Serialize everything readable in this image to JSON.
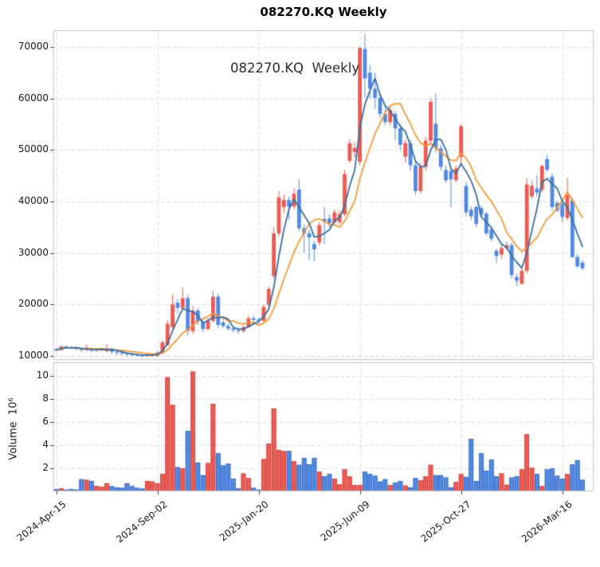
{
  "title": "082270.KQ  Weekly",
  "annotation": "082270.KQ  Weekly",
  "colors": {
    "up": "#ee5a52",
    "down": "#5289e4",
    "up_edge": "#c0403a",
    "down_edge": "#2f62b0",
    "ma_fast": "#3670a0",
    "ma_slow": "#f79a38",
    "grid": "#d8d8d8",
    "spine": "#c4c4c4",
    "tick": "#262626",
    "text": "#1a1a1a"
  },
  "price_axis": {
    "ticks": [
      10000,
      20000,
      30000,
      40000,
      50000,
      60000,
      70000
    ],
    "range": [
      9200,
      73250
    ]
  },
  "volume_axis": {
    "label": "Volume  10⁶",
    "ticks": [
      2,
      4,
      6,
      8,
      10
    ],
    "range": [
      0,
      11.2
    ]
  },
  "x_axis": {
    "ticks": [
      {
        "week": 0,
        "label": "2024-Apr-15"
      },
      {
        "week": 20,
        "label": "2024-Sep-02"
      },
      {
        "week": 40,
        "label": "2025-Jan-20"
      },
      {
        "week": 60,
        "label": "2025-Jun-09"
      },
      {
        "week": 80,
        "label": "2025-Oct-27"
      },
      {
        "week": 100,
        "label": "2026-Mar-16"
      }
    ]
  },
  "chart_data": {
    "type": "candlestick",
    "symbol": "082270.KQ",
    "interval": "Weekly",
    "title": "082270.KQ  Weekly",
    "legend_position": "none",
    "grid": true,
    "ma_fast_window": 4,
    "ma_slow_window": 9,
    "n_weeks": 105,
    "open": [
      11300,
      11100,
      11800,
      11700,
      11600,
      11300,
      11100,
      11500,
      11000,
      11100,
      10900,
      11400,
      10800,
      10600,
      10400,
      10300,
      10200,
      10100,
      10000,
      10000,
      10000,
      10600,
      12100,
      15600,
      20300,
      19300,
      21200,
      14800,
      18800,
      16600,
      15200,
      16800,
      21500,
      16500,
      15800,
      15300,
      15000,
      14800,
      15600,
      17300,
      17000,
      16800,
      19900,
      25500,
      33800,
      38900,
      40300,
      39000,
      42300,
      34800,
      33800,
      31700,
      32000,
      36600,
      36700,
      35900,
      36000,
      37500,
      47900,
      49600,
      47700,
      69600,
      65000,
      61900,
      60100,
      57000,
      55400,
      57000,
      54200,
      48700,
      51300,
      47000,
      42000,
      46700,
      51800,
      55100,
      50300,
      46100,
      45900,
      44100,
      48700,
      43000,
      38400,
      38900,
      38700,
      37600,
      34550,
      30420,
      29650,
      30900,
      31500,
      25300,
      24000,
      26500,
      40975,
      42500,
      42270,
      48200,
      44800,
      39700,
      39500,
      36800,
      40200,
      29200,
      28100
    ],
    "high": [
      11500,
      12000,
      12100,
      11900,
      11700,
      11500,
      12200,
      11600,
      11500,
      11600,
      12200,
      11500,
      11000,
      10800,
      10600,
      10500,
      10400,
      10300,
      10500,
      10500,
      10900,
      13000,
      17000,
      21900,
      21000,
      23300,
      21800,
      19600,
      19200,
      17000,
      17300,
      22600,
      22000,
      17500,
      16300,
      15800,
      15400,
      16000,
      17800,
      17800,
      17400,
      20000,
      23500,
      35000,
      42000,
      41300,
      41000,
      42500,
      44300,
      35500,
      34500,
      32300,
      36000,
      38900,
      37500,
      38500,
      38200,
      46100,
      52100,
      51500,
      70000,
      72500,
      66500,
      65000,
      61000,
      58500,
      58500,
      57500,
      55000,
      52000,
      52000,
      47500,
      47500,
      52500,
      60000,
      60900,
      51000,
      47000,
      46300,
      47000,
      55000,
      43800,
      39000,
      39200,
      39200,
      38000,
      35000,
      30800,
      31800,
      32200,
      32000,
      26000,
      27000,
      44500,
      44000,
      45100,
      47200,
      48970,
      45500,
      40200,
      40500,
      44600,
      40800,
      29800,
      28600
    ],
    "low": [
      10900,
      11000,
      11500,
      11400,
      11100,
      10800,
      10900,
      10700,
      10800,
      10900,
      10700,
      10300,
      10200,
      10100,
      10000,
      9900,
      9800,
      9700,
      9700,
      9800,
      9800,
      10400,
      11900,
      15300,
      18200,
      19000,
      14000,
      14200,
      16000,
      14600,
      14900,
      16500,
      15300,
      15400,
      14900,
      14600,
      14300,
      14500,
      15400,
      16500,
      16300,
      16600,
      19500,
      25000,
      33200,
      37800,
      36500,
      38500,
      34200,
      30000,
      28600,
      28400,
      31500,
      31700,
      35000,
      35500,
      35600,
      37200,
      47400,
      48500,
      47000,
      60100,
      60000,
      58000,
      56200,
      54800,
      54800,
      51800,
      50000,
      47500,
      46000,
      41250,
      41500,
      46000,
      51000,
      49500,
      46000,
      43600,
      38900,
      43700,
      47500,
      37100,
      36400,
      35000,
      36900,
      33400,
      32200,
      28000,
      28800,
      30400,
      25000,
      23500,
      23800,
      26000,
      40500,
      41000,
      41800,
      45800,
      38200,
      37900,
      36000,
      36300,
      29000,
      27000,
      26600
    ],
    "close": [
      11100,
      11800,
      11700,
      11600,
      11300,
      11100,
      11500,
      11000,
      11200,
      11300,
      11400,
      10800,
      10600,
      10400,
      10300,
      10200,
      10100,
      10000,
      10300,
      10200,
      10600,
      12600,
      16200,
      20000,
      19300,
      21200,
      14800,
      18800,
      16600,
      15200,
      16800,
      21500,
      16000,
      15800,
      15300,
      15000,
      14800,
      15600,
      17300,
      17000,
      16800,
      19500,
      23000,
      33800,
      40800,
      40300,
      39000,
      41500,
      34800,
      33800,
      33000,
      30700,
      35400,
      36100,
      35800,
      37900,
      37500,
      45300,
      51300,
      50400,
      69800,
      63900,
      61900,
      60100,
      57000,
      55400,
      57800,
      54200,
      51000,
      51300,
      47000,
      42000,
      46700,
      51800,
      59300,
      50300,
      46700,
      44100,
      44300,
      46400,
      54600,
      37900,
      37100,
      35600,
      37400,
      33800,
      32750,
      29390,
      30930,
      31500,
      25700,
      24600,
      26500,
      43300,
      43040,
      41700,
      46900,
      46140,
      38900,
      38200,
      37000,
      41300,
      29200,
      27400,
      27000
    ],
    "volume_millions": [
      0.2,
      0.25,
      0.15,
      0.2,
      0.15,
      1.05,
      1.0,
      0.9,
      0.45,
      0.4,
      0.7,
      0.45,
      0.35,
      0.3,
      0.7,
      0.45,
      0.3,
      0.25,
      0.9,
      0.85,
      0.7,
      1.5,
      9.9,
      7.5,
      2.1,
      2.0,
      5.25,
      10.4,
      2.5,
      1.4,
      2.45,
      7.6,
      3.3,
      2.25,
      2.4,
      1.1,
      0.25,
      1.55,
      1.15,
      0.3,
      0.15,
      2.8,
      4.15,
      7.2,
      3.6,
      3.5,
      3.5,
      2.6,
      2.3,
      2.9,
      2.35,
      2.9,
      1.7,
      1.3,
      1.5,
      1.1,
      0.6,
      1.9,
      1.3,
      0.55,
      0.55,
      1.7,
      1.5,
      1.35,
      0.85,
      1.05,
      0.55,
      0.75,
      0.9,
      0.5,
      0.35,
      1.15,
      0.95,
      1.3,
      2.3,
      1.4,
      1.4,
      1.2,
      0.35,
      0.8,
      1.5,
      1.25,
      4.55,
      0.9,
      3.3,
      1.8,
      2.75,
      1.3,
      1.55,
      0.57,
      1.2,
      1.3,
      1.9,
      4.95,
      2.05,
      1.5,
      0.45,
      1.9,
      2.0,
      1.35,
      1.1,
      1.5,
      2.35,
      2.7,
      1.0
    ]
  }
}
